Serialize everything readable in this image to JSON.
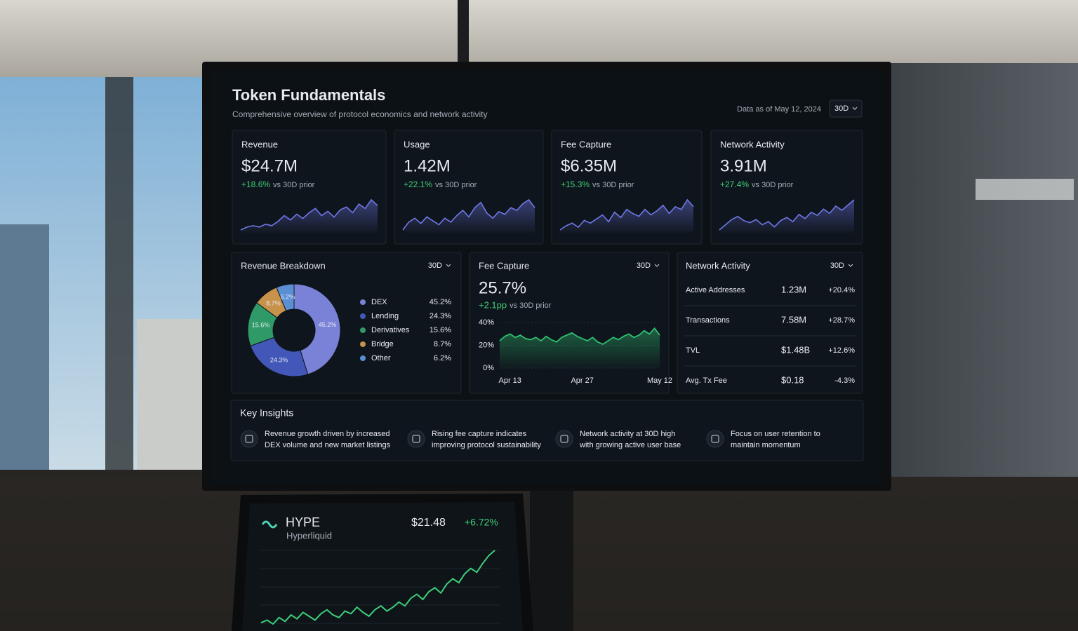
{
  "dashboard": {
    "title": "Token Fundamentals",
    "subtitle": "Comprehensive overview of protocol economics and network activity",
    "data_as_of": "Data as of May 12, 2024",
    "range": "30D",
    "kpis": [
      {
        "label": "Revenue",
        "value": "$24.7M",
        "change": "+18.6%",
        "comparison": "vs 30D prior"
      },
      {
        "label": "Usage",
        "value": "1.42M",
        "change": "+22.1%",
        "comparison": "vs 30D prior"
      },
      {
        "label": "Fee Capture",
        "value": "$6.35M",
        "change": "+15.3%",
        "comparison": "vs 30D prior"
      },
      {
        "label": "Network Activity",
        "value": "3.91M",
        "change": "+27.4%",
        "comparison": "vs 30D prior"
      }
    ],
    "revenue_breakdown": {
      "title": "Revenue Breakdown",
      "range": "30D"
    },
    "fee_capture": {
      "title": "Fee Capture",
      "range": "30D",
      "value": "25.7%",
      "change": "+2.1pp",
      "comparison": "vs 30D prior"
    },
    "network_activity": {
      "title": "Network Activity",
      "range": "30D",
      "rows": [
        {
          "label": "Active Addresses",
          "value": "1.23M",
          "change": "+20.4%",
          "change_color": "#3ecf7a"
        },
        {
          "label": "Transactions",
          "value": "7.58M",
          "change": "+28.7%",
          "change_color": "#3ecf7a"
        },
        {
          "label": "TVL",
          "value": "$1.48B",
          "change": "+12.6%",
          "change_color": "#3ecf7a"
        },
        {
          "label": "Avg. Tx Fee",
          "value": "$0.18",
          "change": "-4.3%",
          "change_color": "#f0514f"
        }
      ]
    },
    "key_insights": {
      "title": "Key Insights",
      "items": [
        {
          "lines": [
            "Revenue growth driven by increased",
            "DEX volume and new market listings"
          ]
        },
        {
          "lines": [
            "Rising fee capture indicates",
            "improving protocol sustainability"
          ]
        },
        {
          "lines": [
            "Network activity at 30D high",
            "with growing active user base"
          ]
        },
        {
          "lines": [
            "Focus on user retention to",
            "maintain momentum"
          ]
        }
      ]
    },
    "laptop": {
      "ticker": "HYPE",
      "name": "Hyperliquid",
      "price": "$21.48",
      "change": "+6.72%"
    }
  },
  "chart_data": [
    {
      "type": "area",
      "color": "#6f78e8",
      "values": [
        12,
        14,
        15,
        14,
        16,
        15,
        18,
        22,
        19,
        23,
        20,
        24,
        27,
        22,
        25,
        21,
        26,
        28,
        24,
        30,
        27,
        33,
        29
      ]
    },
    {
      "type": "area",
      "color": "#6f78e8",
      "values": [
        10,
        16,
        19,
        15,
        20,
        17,
        14,
        19,
        16,
        21,
        25,
        20,
        27,
        31,
        23,
        19,
        24,
        22,
        27,
        25,
        30,
        33,
        27
      ]
    },
    {
      "type": "area",
      "color": "#6f78e8",
      "values": [
        11,
        14,
        16,
        13,
        18,
        16,
        19,
        22,
        17,
        24,
        20,
        26,
        23,
        21,
        26,
        22,
        25,
        29,
        23,
        28,
        26,
        33,
        28
      ]
    },
    {
      "type": "area",
      "color": "#6f78e8",
      "values": [
        9,
        14,
        19,
        22,
        18,
        16,
        19,
        14,
        17,
        12,
        18,
        21,
        17,
        24,
        20,
        26,
        23,
        29,
        25,
        32,
        28,
        33,
        38
      ]
    },
    {
      "type": "pie",
      "donut": true,
      "categories": [
        "DEX",
        "Lending",
        "Derivatives",
        "Bridge",
        "Other"
      ],
      "values": [
        45.2,
        24.3,
        15.6,
        8.7,
        6.2
      ],
      "value_labels": [
        "45.2%",
        "24.3%",
        "15.6%",
        "8.7%",
        "6.2%"
      ],
      "colors": [
        "#7a82d8",
        "#4257b8",
        "#2f9a68",
        "#c7924a",
        "#5b8fd4"
      ]
    },
    {
      "type": "area",
      "color": "#2fbf71",
      "categories": [
        null,
        null,
        "Apr 13",
        null,
        null,
        null,
        null,
        null,
        null,
        null,
        null,
        null,
        null,
        null,
        null,
        null,
        "Apr 27",
        null,
        null,
        null,
        null,
        null,
        null,
        null,
        null,
        null,
        null,
        null,
        null,
        null,
        null,
        "May 12"
      ],
      "values": [
        24,
        28,
        30,
        27,
        29,
        26,
        25,
        27,
        24,
        28,
        25,
        23,
        27,
        29,
        31,
        28,
        26,
        24,
        27,
        23,
        21,
        24,
        27,
        25,
        28,
        30,
        27,
        29,
        33,
        30,
        35,
        29
      ],
      "ylim": [
        0,
        42
      ],
      "yticks": [
        {
          "value": 0,
          "label": "0%"
        },
        {
          "value": 20,
          "label": "20%"
        },
        {
          "value": 40,
          "label": "40%"
        }
      ],
      "grid": true
    },
    {
      "type": "line",
      "color": "#3ecf7a",
      "values": [
        14,
        16,
        13,
        18,
        15,
        20,
        17,
        22,
        19,
        16,
        21,
        24,
        20,
        18,
        23,
        21,
        26,
        22,
        19,
        24,
        27,
        23,
        26,
        30,
        27,
        33,
        36,
        32,
        38,
        41,
        37,
        44,
        48,
        45,
        52,
        56,
        53,
        60,
        66,
        70
      ]
    }
  ]
}
